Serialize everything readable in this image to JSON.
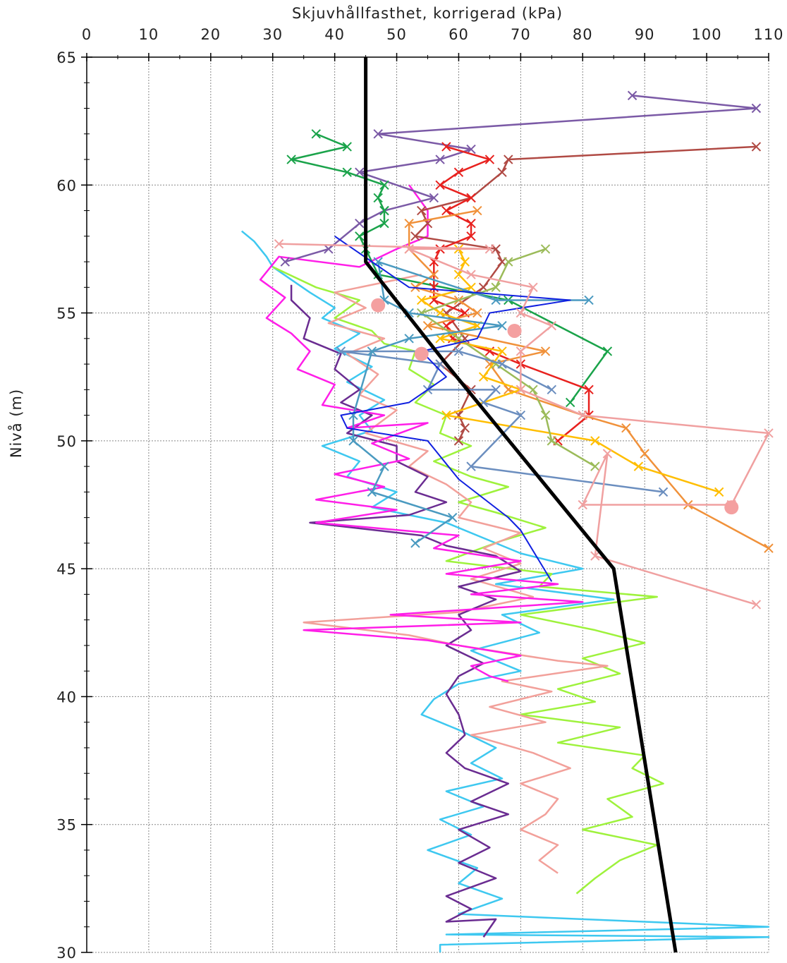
{
  "chart_data": {
    "type": "line",
    "xlabel": "Skjuvhållfasthet, korrigerad (kPa)",
    "ylabel": "Nivå (m)",
    "xlim": [
      0,
      110
    ],
    "ylim": [
      30,
      65
    ],
    "xticks": [
      0,
      10,
      20,
      30,
      40,
      50,
      60,
      70,
      80,
      90,
      100,
      110
    ],
    "yticks": [
      30,
      35,
      40,
      45,
      50,
      55,
      60,
      65
    ],
    "xminor": [
      5,
      15,
      25,
      35,
      45,
      55,
      65,
      75,
      85,
      95,
      105
    ],
    "yminor": [
      31,
      32,
      33,
      34,
      36,
      37,
      38,
      39,
      41,
      42,
      43,
      44,
      46,
      47,
      48,
      49,
      51,
      52,
      53,
      54,
      56,
      57,
      58,
      59,
      61,
      62,
      63,
      64
    ],
    "grid": true,
    "series": [
      {
        "color": "#3ec8f0",
        "width": 2.5,
        "marker": null,
        "x": [
          25,
          27,
          29,
          30,
          33,
          36,
          40,
          38,
          44,
          40,
          46,
          42,
          48,
          44,
          46,
          38,
          44,
          42,
          50,
          46,
          58,
          64,
          70,
          80,
          66,
          85,
          67,
          73,
          62,
          70,
          60,
          56,
          54,
          60,
          66,
          62,
          67,
          58,
          64,
          57,
          62,
          55,
          63,
          60,
          67,
          60,
          110,
          58,
          110,
          57,
          57
        ],
        "values": [
          58.2,
          57.8,
          57.2,
          56.8,
          56.3,
          55.8,
          55.2,
          54.8,
          54.2,
          53.6,
          52.9,
          52.3,
          51.6,
          51,
          50.4,
          49.8,
          49.2,
          48.6,
          48,
          47.4,
          46.8,
          46.2,
          45.6,
          45,
          44.4,
          43.8,
          43.2,
          42.5,
          41.8,
          41,
          40.5,
          39.9,
          39.3,
          38.7,
          38,
          37.4,
          36.8,
          36.3,
          35.7,
          35.2,
          34.6,
          34,
          33.3,
          32.7,
          32.1,
          31.5,
          31,
          30.7,
          30.6,
          30.3,
          30
        ]
      },
      {
        "color": "#9ef23c",
        "width": 2.5,
        "marker": null,
        "x": [
          30,
          37,
          44,
          40,
          46,
          48,
          53,
          52,
          56,
          53,
          58,
          57,
          62,
          56,
          62,
          68,
          60,
          66,
          74,
          67,
          58,
          75,
          73,
          92,
          70,
          82,
          90,
          80,
          86,
          76,
          82,
          70,
          86,
          76,
          90,
          88,
          93,
          84,
          88,
          80,
          92,
          86,
          82,
          79
        ],
        "values": [
          56.8,
          56,
          55.5,
          54.8,
          54.3,
          53.8,
          53.5,
          52.8,
          52.2,
          51.5,
          51,
          50.3,
          49.8,
          49.2,
          48.6,
          48.2,
          47.6,
          47.2,
          46.6,
          46.1,
          45.3,
          44.8,
          44.3,
          43.9,
          43.2,
          42.6,
          42.1,
          41.5,
          40.9,
          40.3,
          39.8,
          39.3,
          38.8,
          38.2,
          37.7,
          37.2,
          36.6,
          36,
          35.3,
          34.8,
          34.2,
          33.6,
          32.9,
          32.3
        ]
      },
      {
        "color": "#f2a09a",
        "width": 2.5,
        "marker": null,
        "x": [
          54,
          40,
          45,
          39,
          48,
          42,
          47,
          44,
          50,
          45,
          55,
          52,
          58,
          62,
          60,
          70,
          64,
          70,
          62,
          72,
          60,
          35,
          52,
          60,
          76,
          84,
          67,
          75,
          65,
          74,
          62,
          72,
          78,
          70,
          76,
          74,
          70,
          76,
          73,
          76
        ],
        "values": [
          56.5,
          55.8,
          55.2,
          54.6,
          54,
          53.4,
          52.6,
          51.8,
          51.2,
          50.3,
          49.6,
          49,
          48.3,
          47.6,
          47,
          46.4,
          45.8,
          45.2,
          44.6,
          43.9,
          43.3,
          42.9,
          42.4,
          42,
          41.4,
          41.2,
          40.6,
          40.2,
          39.6,
          39,
          38.5,
          37.8,
          37.2,
          36.6,
          36,
          35.4,
          34.8,
          34.2,
          33.6,
          33.1
        ]
      },
      {
        "color": "#6a2c91",
        "width": 2.5,
        "marker": null,
        "x": [
          33,
          33,
          36,
          35,
          41,
          40,
          44,
          41,
          46,
          42,
          50,
          50,
          55,
          53,
          58,
          52,
          36,
          54,
          58,
          66,
          70,
          60,
          66,
          60,
          62,
          58,
          64,
          60,
          58,
          60,
          61,
          58,
          61,
          68,
          62,
          68,
          60,
          65,
          60,
          66,
          58,
          62,
          58,
          66,
          64
        ],
        "values": [
          56.1,
          55.5,
          54.8,
          54,
          53.4,
          52.8,
          52,
          51.5,
          51,
          50.3,
          49.8,
          49.2,
          48.6,
          48,
          47.6,
          47.1,
          46.8,
          46.3,
          45.9,
          45.5,
          44.9,
          44.3,
          43.8,
          43.2,
          42.6,
          42,
          41.3,
          40.8,
          40.1,
          39.3,
          38.5,
          37.8,
          37.2,
          36.6,
          35.9,
          35.4,
          34.8,
          34.1,
          33.5,
          32.9,
          32.2,
          31.7,
          31.2,
          31.3,
          30.6
        ]
      },
      {
        "color": "#ff1ee8",
        "width": 2.5,
        "marker": null,
        "x": [
          52,
          55,
          55,
          50,
          44,
          31,
          28,
          32,
          29,
          33,
          36,
          34,
          40,
          38,
          48,
          42,
          55,
          46,
          52,
          40,
          48,
          37,
          50,
          37,
          60,
          56,
          70,
          58,
          76,
          62,
          80,
          49,
          70,
          35,
          55,
          70,
          62,
          65,
          68
        ],
        "values": [
          60,
          59,
          58,
          57.5,
          56.8,
          57.2,
          56.3,
          55.6,
          54.8,
          54.2,
          53.5,
          52.8,
          52.2,
          51.4,
          51,
          50.5,
          50.7,
          49.9,
          49.3,
          48.7,
          48.2,
          47.7,
          47.3,
          46.8,
          46.3,
          45.8,
          45.3,
          44.8,
          44.4,
          44,
          43.7,
          43.2,
          42.9,
          42.6,
          42.2,
          41.6,
          41.2,
          40.8,
          40.6
        ]
      },
      {
        "color": "#7b5aa6",
        "width": 2.5,
        "marker": "x",
        "x": [
          88,
          108,
          47,
          62,
          57,
          44,
          56,
          48,
          44,
          39,
          32
        ],
        "values": [
          63.5,
          63,
          62,
          61.4,
          61,
          60.5,
          59.5,
          59,
          58.5,
          57.5,
          57
        ]
      },
      {
        "color": "#b04a44",
        "width": 2.5,
        "marker": "x",
        "x": [
          108,
          68,
          67,
          62,
          54,
          55,
          53,
          66,
          67,
          64,
          58,
          61,
          57,
          62,
          60,
          61,
          60
        ],
        "values": [
          61.5,
          61,
          60.5,
          59.5,
          59,
          58.5,
          58,
          57.5,
          57,
          56,
          55,
          54,
          53,
          52,
          51,
          50.5,
          50
        ]
      },
      {
        "color": "#1aa34a",
        "width": 2.5,
        "marker": "x",
        "x": [
          37,
          42,
          33,
          42,
          48,
          47,
          48,
          48,
          44,
          45,
          47,
          68,
          84,
          78
        ],
        "values": [
          62,
          61.5,
          61,
          60.5,
          60,
          59.5,
          59,
          58.5,
          58,
          57.5,
          56.5,
          55.5,
          53.5,
          51.5
        ]
      },
      {
        "color": "#e8211e",
        "width": 2.5,
        "marker": "x",
        "x": [
          58,
          65,
          60,
          57,
          62,
          58,
          62,
          62,
          57,
          56,
          56,
          56,
          56,
          61,
          58,
          59,
          65,
          70,
          81,
          81,
          76
        ],
        "values": [
          61.5,
          61,
          60.5,
          60,
          59.5,
          59,
          58.5,
          58,
          57.5,
          57,
          56.5,
          56,
          55.5,
          55,
          54.5,
          54,
          53.5,
          53,
          52,
          51,
          50
        ]
      },
      {
        "color": "#f0913a",
        "width": 2.5,
        "marker": "x",
        "x": [
          63,
          52,
          52,
          56,
          53,
          60,
          63,
          55,
          74,
          65,
          68,
          80,
          87,
          90,
          97,
          110
        ],
        "values": [
          59,
          58.5,
          57.5,
          56.5,
          56,
          55.5,
          55,
          54.5,
          53.5,
          53,
          52,
          51,
          50.5,
          49.5,
          47.5,
          45.8
        ]
      },
      {
        "color": "#ffbe00",
        "width": 2.5,
        "marker": "x",
        "x": [
          60,
          61,
          60,
          62,
          54,
          57,
          63,
          57,
          67,
          64,
          70,
          58,
          82,
          89,
          102
        ],
        "values": [
          57.5,
          57,
          56.5,
          56,
          55.5,
          55,
          54.5,
          54,
          53.5,
          52.5,
          52,
          51,
          50,
          49,
          48
        ]
      },
      {
        "color": "#9bbb59",
        "width": 2.5,
        "marker": "x",
        "x": [
          74,
          68,
          66,
          54,
          60,
          66,
          72,
          74,
          75,
          82
        ],
        "values": [
          57.5,
          57,
          56,
          55,
          54,
          53,
          52,
          51,
          50,
          49
        ]
      },
      {
        "color": "#6b8ebf",
        "width": 2.5,
        "marker": "x",
        "x": [
          75,
          67,
          60,
          41,
          57,
          55,
          66,
          64,
          70,
          62,
          93
        ],
        "values": [
          52,
          53,
          53.5,
          53.5,
          53,
          52,
          52,
          51.5,
          51,
          49,
          48
        ]
      },
      {
        "color": "#4a9ac0",
        "width": 2.5,
        "marker": "x",
        "x": [
          81,
          66,
          47,
          48,
          52,
          67,
          52,
          46,
          43,
          43,
          48,
          46,
          59,
          53
        ],
        "values": [
          55.5,
          55.5,
          57,
          55.5,
          55,
          54.5,
          54,
          53.5,
          51,
          50,
          49,
          48,
          47,
          46
        ]
      },
      {
        "color": "#1020e0",
        "width": 2,
        "marker": null,
        "x": [
          40,
          52,
          78,
          65,
          63,
          54,
          58,
          52,
          41,
          42,
          55,
          60,
          68,
          70,
          75
        ],
        "values": [
          58,
          56,
          55.5,
          55,
          54,
          53.5,
          52.5,
          51.5,
          51,
          50.5,
          50,
          48.5,
          47,
          46.5,
          44.5
        ]
      },
      {
        "color": "#f0a0a0",
        "width": 2.5,
        "marker": "x",
        "x": [
          31,
          65,
          52,
          62,
          72,
          70,
          75,
          70,
          70,
          80,
          110,
          104,
          80,
          84,
          82,
          108
        ],
        "values": [
          57.7,
          57.5,
          57.5,
          56.5,
          56,
          55,
          54.5,
          53.5,
          52,
          51,
          50.3,
          47.5,
          47.5,
          49.5,
          45.5,
          43.6
        ]
      },
      {
        "color": "#f4a0a0",
        "width": 0,
        "marker": "circle",
        "x": [
          47,
          69,
          54,
          104
        ],
        "values": [
          55.3,
          54.3,
          53.4,
          47.4
        ]
      },
      {
        "color": "#000000",
        "width": 5,
        "marker": null,
        "x": [
          45,
          45,
          58,
          85,
          95
        ],
        "values": [
          65,
          57,
          53,
          45,
          30
        ]
      }
    ]
  }
}
